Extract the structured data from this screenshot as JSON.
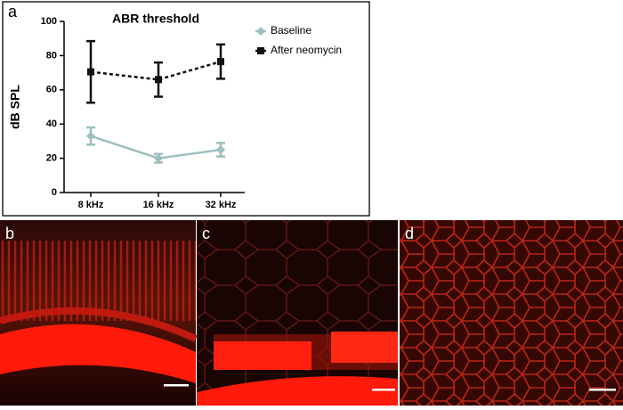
{
  "chart_data": {
    "type": "line",
    "panel_label": "a",
    "title": "ABR threshold",
    "y_label": "dB SPL",
    "categories": [
      "8 kHz",
      "16 kHz",
      "32 kHz"
    ],
    "series": [
      {
        "name": "Baseline",
        "color": "#9dbfbf",
        "dash": false,
        "marker": "diamond",
        "values": [
          33,
          20,
          25
        ],
        "errors": [
          5,
          2.5,
          4
        ]
      },
      {
        "name": "After neomycin",
        "color": "#111111",
        "dash": true,
        "marker": "square",
        "values": [
          70.5,
          66,
          76.5
        ],
        "errors": [
          18,
          10,
          10
        ]
      }
    ],
    "ylim": [
      0,
      100
    ],
    "yticks": [
      0,
      20,
      40,
      60,
      80,
      100
    ],
    "grid": false,
    "legend": "upper right"
  },
  "image_panels": [
    {
      "label": "b"
    },
    {
      "label": "c"
    },
    {
      "label": "d"
    }
  ]
}
